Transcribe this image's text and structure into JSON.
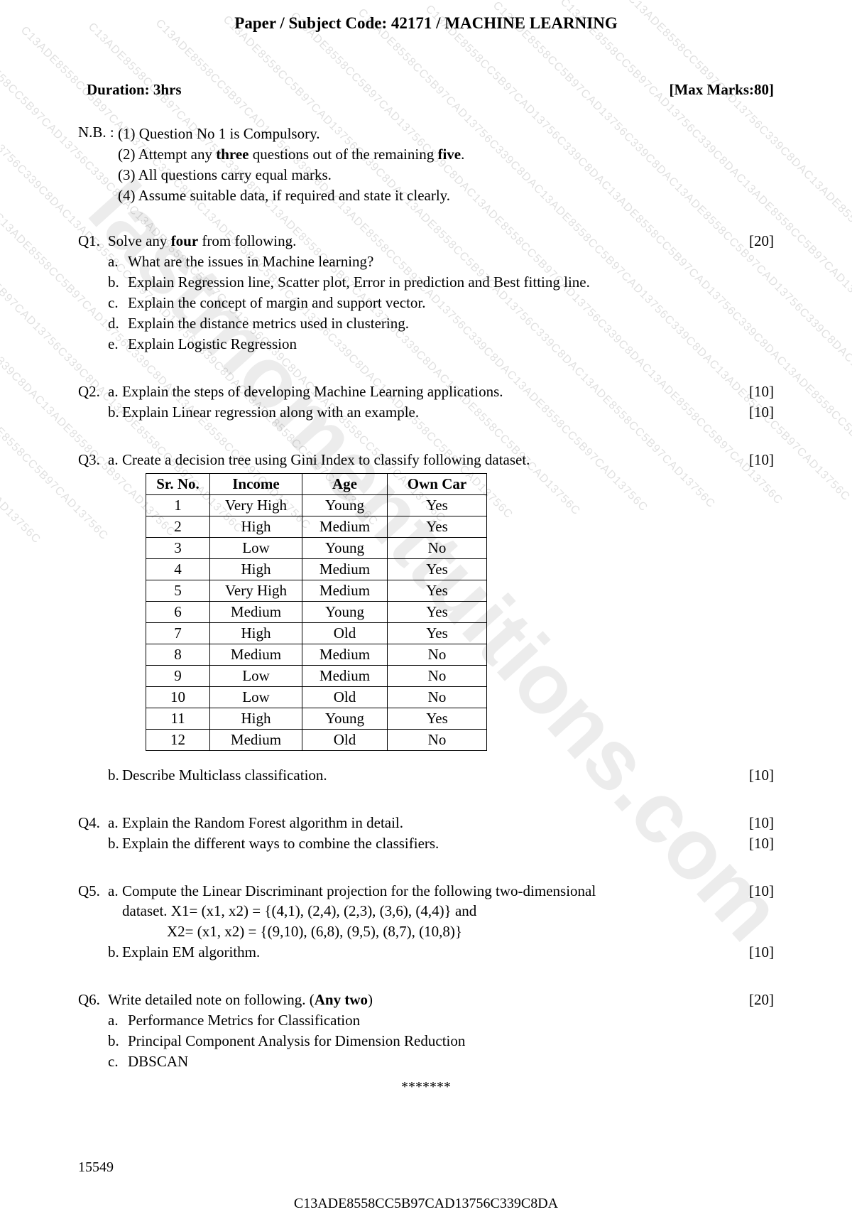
{
  "header": "Paper / Subject Code: 42171 / MACHINE LEARNING",
  "duration": "Duration: 3hrs",
  "max_marks": "[Max Marks:80]",
  "nb_label": "N.B. :",
  "nb_items": [
    "(1) Question No 1 is Compulsory.",
    "(2) Attempt any <b>three</b> questions out of the remaining <b>five</b>.",
    "(3) All questions carry equal marks.",
    "(4) Assume suitable data, if required and state it clearly."
  ],
  "q1": {
    "num": "Q1.",
    "text": "Solve any <b>four</b> from following.",
    "marks": "[20]",
    "subs": [
      {
        "l": "a.",
        "t": "What are the issues in Machine learning?"
      },
      {
        "l": "b.",
        "t": "Explain Regression line, Scatter plot, Error in prediction and Best fitting line."
      },
      {
        "l": "c.",
        "t": "Explain the concept of margin and support vector."
      },
      {
        "l": "d.",
        "t": "Explain the distance metrics used in clustering."
      },
      {
        "l": "e.",
        "t": "Explain Logistic Regression"
      }
    ]
  },
  "q2": {
    "num": "Q2.",
    "a": {
      "l": "a.",
      "t": "Explain the steps of developing Machine Learning applications.",
      "m": "[10]"
    },
    "b": {
      "l": "b.",
      "t": "Explain Linear regression along with an example.",
      "m": "[10]"
    }
  },
  "q3": {
    "num": "Q3.",
    "a": {
      "l": "a.",
      "t": "Create a decision tree using Gini Index to classify following dataset.",
      "m": "[10]"
    },
    "b": {
      "l": "b.",
      "t": "Describe Multiclass classification.",
      "m": "[10]"
    }
  },
  "table": {
    "headers": [
      "Sr. No.",
      "Income",
      "Age",
      "Own Car"
    ],
    "rows": [
      [
        "1",
        "Very High",
        "Young",
        "Yes"
      ],
      [
        "2",
        "High",
        "Medium",
        "Yes"
      ],
      [
        "3",
        "Low",
        "Young",
        "No"
      ],
      [
        "4",
        "High",
        "Medium",
        "Yes"
      ],
      [
        "5",
        "Very High",
        "Medium",
        "Yes"
      ],
      [
        "6",
        "Medium",
        "Young",
        "Yes"
      ],
      [
        "7",
        "High",
        "Old",
        "Yes"
      ],
      [
        "8",
        "Medium",
        "Medium",
        "No"
      ],
      [
        "9",
        "Low",
        "Medium",
        "No"
      ],
      [
        "10",
        "Low",
        "Old",
        "No"
      ],
      [
        "11",
        "High",
        "Young",
        "Yes"
      ],
      [
        "12",
        "Medium",
        "Old",
        "No"
      ]
    ]
  },
  "q4": {
    "num": "Q4.",
    "a": {
      "l": "a.",
      "t": "Explain the Random Forest algorithm in detail.",
      "m": "[10]"
    },
    "b": {
      "l": "b.",
      "t": "Explain the different ways to combine the classifiers.",
      "m": "[10]"
    }
  },
  "q5": {
    "num": "Q5.",
    "a": {
      "l": "a.",
      "t": "Compute the Linear Discriminant projection for the following two-dimensional",
      "m": "[10]"
    },
    "a2": "dataset. X1= (x1, x2) = {(4,1), (2,4), (2,3), (3,6), (4,4)} and",
    "a3": "X2= (x1, x2) = {(9,10), (6,8), (9,5), (8,7), (10,8)}",
    "b": {
      "l": "b.",
      "t": "Explain EM algorithm.",
      "m": "[10]"
    }
  },
  "q6": {
    "num": "Q6.",
    "text": "Write detailed note on following. (<b>Any two</b>)",
    "marks": "[20]",
    "subs": [
      {
        "l": "a.",
        "t": "Performance Metrics for Classification"
      },
      {
        "l": "b.",
        "t": "Principal Component Analysis for Dimension Reduction"
      },
      {
        "l": "c.",
        "t": "DBSCAN"
      }
    ]
  },
  "stars": "*******",
  "footer_num": "15549",
  "footer_code": "C13ADE8558CC5B97CAD13756C339C8DA",
  "watermark_text": "C13ADE8558CC5B97CAD13756C339C8DAC13ADE8558CC5B97CAD13756C339C8DAC13ADE8558CC5B97CAD13756C",
  "watermark_big": "lastmomenttuitions.com"
}
